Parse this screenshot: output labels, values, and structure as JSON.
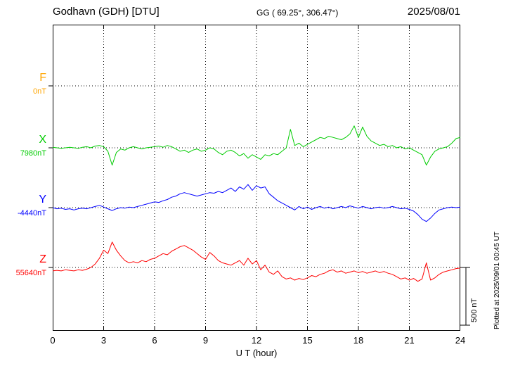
{
  "header": {
    "station": "Godhavn (GDH)  [DTU]",
    "coords": "GG ( 69.25°, 306.47°)",
    "date": "2025/08/01"
  },
  "axes": {
    "x_ticks": [
      "0",
      "3",
      "6",
      "9",
      "12",
      "15",
      "18",
      "21",
      "24"
    ],
    "xlabel": "U T (hour)"
  },
  "scale_bar": {
    "label": "500 nT",
    "nT": 500
  },
  "side_note": "Plotted at 2025/09/01 00:45 UT",
  "chart_data": {
    "type": "line",
    "title": "Godhavn (GDH) [DTU] magnetogram 2025/08/01",
    "x_unit": "UT hour",
    "x_range": [
      0,
      24
    ],
    "x_step_hours": 0.25,
    "grid": "dotted at 3-hour intervals and at each component baseline",
    "scale_bar_nT": 500,
    "series": [
      {
        "name": "F",
        "color": "#ffa500",
        "baseline_label": "0nT",
        "baseline_nT": 0,
        "offsets_nT": []
      },
      {
        "name": "X",
        "color": "#00cc00",
        "baseline_label": "7980nT",
        "baseline_nT": 7980,
        "offsets_nT": [
          5,
          0,
          -5,
          0,
          5,
          0,
          -5,
          5,
          10,
          0,
          15,
          20,
          10,
          -30,
          -150,
          -40,
          -10,
          -20,
          0,
          10,
          0,
          -10,
          0,
          5,
          10,
          15,
          5,
          20,
          10,
          -10,
          -30,
          -20,
          -40,
          -20,
          -10,
          -30,
          -20,
          0,
          -10,
          -40,
          -60,
          -30,
          -20,
          -40,
          -70,
          -50,
          -90,
          -60,
          -80,
          -100,
          -60,
          -70,
          -50,
          -60,
          -30,
          0,
          160,
          20,
          40,
          10,
          30,
          50,
          70,
          90,
          80,
          100,
          90,
          80,
          70,
          90,
          120,
          190,
          90,
          180,
          100,
          60,
          40,
          20,
          30,
          10,
          20,
          0,
          10,
          -10,
          0,
          -20,
          -40,
          -60,
          -150,
          -80,
          -30,
          -10,
          0,
          10,
          40,
          80,
          90
        ]
      },
      {
        "name": "Y",
        "color": "#0000ff",
        "baseline_label": "-4440nT",
        "baseline_nT": -4440,
        "offsets_nT": [
          0,
          -10,
          -5,
          -15,
          -10,
          -20,
          -10,
          -5,
          -10,
          0,
          10,
          20,
          5,
          -10,
          -25,
          -10,
          0,
          -5,
          5,
          0,
          10,
          20,
          30,
          40,
          50,
          45,
          60,
          70,
          90,
          100,
          120,
          130,
          120,
          110,
          100,
          110,
          120,
          130,
          125,
          140,
          130,
          150,
          170,
          140,
          180,
          160,
          200,
          150,
          190,
          170,
          180,
          120,
          90,
          60,
          40,
          20,
          0,
          -20,
          10,
          -10,
          5,
          -15,
          0,
          10,
          -5,
          5,
          -10,
          0,
          10,
          0,
          15,
          5,
          -5,
          10,
          0,
          -10,
          0,
          5,
          -5,
          0,
          10,
          0,
          -10,
          -5,
          -15,
          -30,
          -60,
          -100,
          -120,
          -90,
          -50,
          -20,
          -10,
          0,
          5,
          0,
          5
        ]
      },
      {
        "name": "Z",
        "color": "#ff0000",
        "baseline_label": "55640nT",
        "baseline_nT": 55640,
        "offsets_nT": [
          -30,
          -25,
          -30,
          -20,
          -25,
          -30,
          -20,
          -25,
          -15,
          0,
          30,
          80,
          150,
          120,
          220,
          150,
          100,
          60,
          40,
          50,
          40,
          60,
          50,
          70,
          80,
          100,
          120,
          110,
          140,
          160,
          180,
          190,
          170,
          150,
          120,
          90,
          70,
          130,
          100,
          60,
          40,
          30,
          20,
          40,
          60,
          20,
          80,
          30,
          60,
          -20,
          20,
          -40,
          -60,
          -30,
          -80,
          -100,
          -90,
          -110,
          -95,
          -105,
          -90,
          -70,
          -80,
          -60,
          -50,
          -30,
          -20,
          -40,
          -30,
          -50,
          -40,
          -30,
          -45,
          -35,
          -50,
          -40,
          -30,
          -45,
          -35,
          -50,
          -60,
          -80,
          -100,
          -90,
          -110,
          -95,
          -120,
          -100,
          40,
          -110,
          -90,
          -60,
          -40,
          -30,
          -20,
          -10,
          -5
        ]
      }
    ]
  }
}
